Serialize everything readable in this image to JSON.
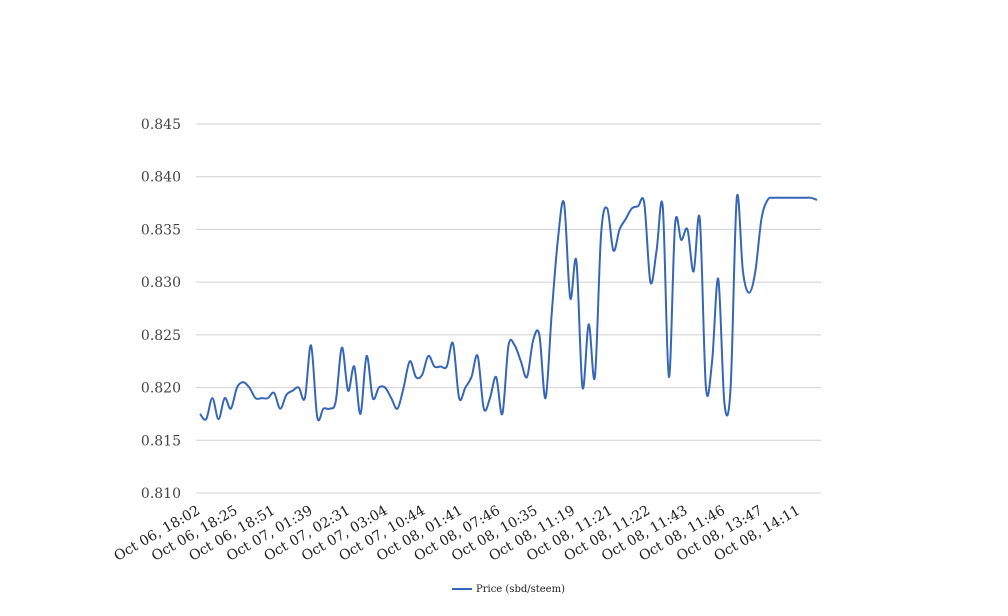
{
  "chart_data": {
    "type": "line",
    "title": "",
    "xlabel": "",
    "ylabel": "",
    "ylim": [
      0.81,
      0.845
    ],
    "yticks": [
      "0.810",
      "0.815",
      "0.820",
      "0.825",
      "0.830",
      "0.835",
      "0.840",
      "0.845"
    ],
    "xtick_labels": [
      "Oct 06, 18:02",
      "Oct 06, 18:25",
      "Oct 06, 18:51",
      "Oct 07, 01:39",
      "Oct 07, 02:31",
      "Oct 07, 03:04",
      "Oct 07, 10:44",
      "Oct 08, 01:41",
      "Oct 08, 07:46",
      "Oct 08, 10:35",
      "Oct 08, 11:19",
      "Oct 08, 11:21",
      "Oct 08, 11:22",
      "Oct 08, 11:43",
      "Oct 08, 11:46",
      "Oct 08, 13:47",
      "Oct 08, 14:11"
    ],
    "grid": true,
    "legend_position": "bottom",
    "series": [
      {
        "name": "Price (sbd/steem)",
        "color": "#3566b8",
        "values": [
          0.8175,
          0.817,
          0.819,
          0.817,
          0.819,
          0.818,
          0.82,
          0.8205,
          0.82,
          0.819,
          0.819,
          0.819,
          0.8195,
          0.818,
          0.8193,
          0.8197,
          0.82,
          0.819,
          0.824,
          0.8172,
          0.818,
          0.818,
          0.8187,
          0.8238,
          0.8197,
          0.822,
          0.8175,
          0.823,
          0.819,
          0.82,
          0.82,
          0.819,
          0.818,
          0.82,
          0.8225,
          0.821,
          0.8212,
          0.823,
          0.822,
          0.822,
          0.822,
          0.8242,
          0.819,
          0.82,
          0.821,
          0.823,
          0.818,
          0.819,
          0.821,
          0.8175,
          0.824,
          0.824,
          0.8225,
          0.821,
          0.8245,
          0.825,
          0.819,
          0.827,
          0.834,
          0.8375,
          0.8285,
          0.832,
          0.82,
          0.826,
          0.821,
          0.8345,
          0.837,
          0.833,
          0.835,
          0.836,
          0.837,
          0.8372,
          0.8375,
          0.83,
          0.833,
          0.8372,
          0.821,
          0.8355,
          0.834,
          0.835,
          0.831,
          0.836,
          0.82,
          0.8225,
          0.8303,
          0.8185,
          0.82,
          0.838,
          0.831,
          0.829,
          0.831,
          0.836,
          0.8378,
          0.838,
          0.838,
          0.838,
          0.838,
          0.838,
          0.838,
          0.838,
          0.8378
        ]
      }
    ]
  }
}
